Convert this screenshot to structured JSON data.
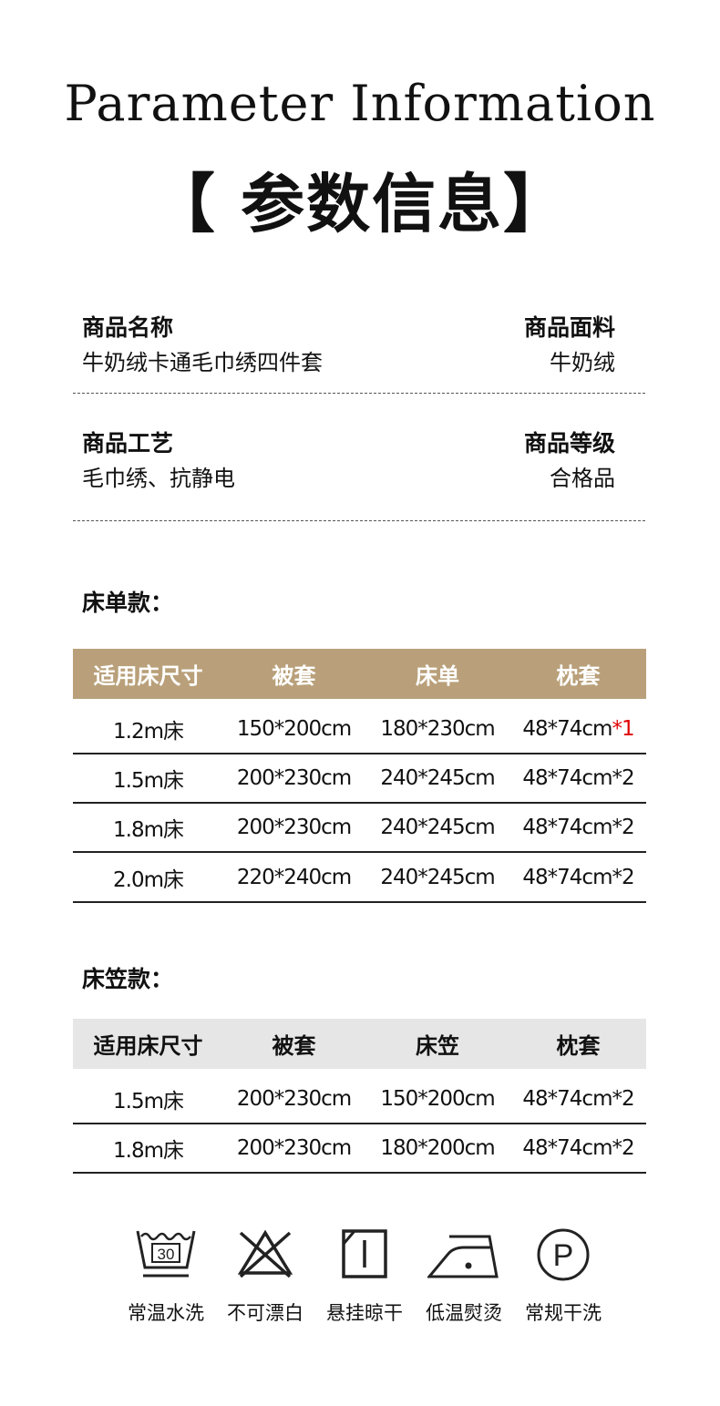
{
  "title_en": "Parameter Information",
  "title_cn": "【 参数信息】",
  "info": [
    {
      "label": "商品名称",
      "value": "牛奶绒卡通毛巾绣四件套"
    },
    {
      "label": "商品面料",
      "value": "牛奶绒"
    },
    {
      "label": "商品工艺",
      "value": "毛巾绣、抗静电"
    },
    {
      "label": "商品等级",
      "value": "合格品"
    }
  ],
  "sheet_section": {
    "title": "床单款：",
    "header": [
      "适用床尺寸",
      "被套",
      "床单",
      "枕套"
    ],
    "header_color": "#b9a07a",
    "rows": [
      [
        "1.2m床",
        "150*200cm",
        "180*230cm",
        "48*74cm",
        "*1"
      ],
      [
        "1.5m床",
        "200*230cm",
        "240*245cm",
        "48*74cm*2",
        ""
      ],
      [
        "1.8m床",
        "200*230cm",
        "240*245cm",
        "48*74cm*2",
        ""
      ],
      [
        "2.0m床",
        "220*240cm",
        "240*245cm",
        "48*74cm*2",
        ""
      ]
    ]
  },
  "fitted_section": {
    "title": "床笠款：",
    "header": [
      "适用床尺寸",
      "被套",
      "床笠",
      "枕套"
    ],
    "header_color": "#e6e6e6",
    "rows": [
      [
        "1.5m床",
        "200*230cm",
        "150*200cm",
        "48*74cm*2"
      ],
      [
        "1.8m床",
        "200*230cm",
        "180*200cm",
        "48*74cm*2"
      ]
    ]
  },
  "care": [
    {
      "icon": "wash-30-icon",
      "label": "常温水洗",
      "num": "30"
    },
    {
      "icon": "no-bleach-icon",
      "label": "不可漂白"
    },
    {
      "icon": "hang-dry-icon",
      "label": "悬挂晾干"
    },
    {
      "icon": "low-iron-icon",
      "label": "低温熨烫"
    },
    {
      "icon": "dry-clean-p-icon",
      "label": "常规干洗",
      "letter": "P"
    }
  ]
}
